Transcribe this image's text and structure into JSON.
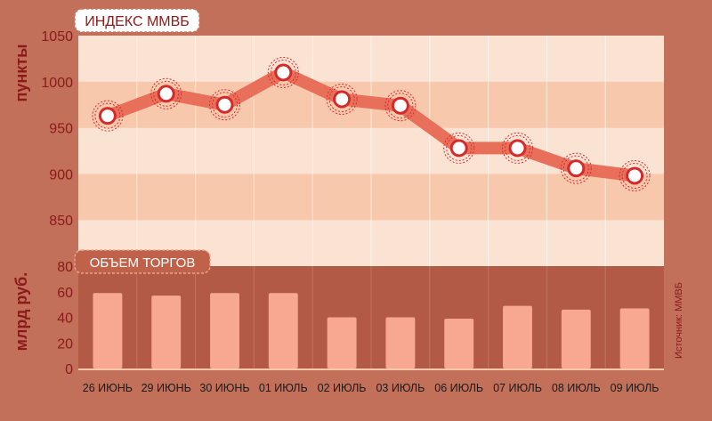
{
  "chart_data": [
    {
      "type": "line",
      "title": "ИНДЕКС ММВБ",
      "ylabel": "пункты",
      "categories": [
        "26 ИЮНЬ",
        "29 ИЮНЬ",
        "30 ИЮНЬ",
        "01 ИЮЛЬ",
        "02 ИЮЛЬ",
        "03 ИЮЛЬ",
        "06 ИЮЛЬ",
        "07 ИЮЛЬ",
        "08 ИЮЛЬ",
        "09 ИЮЛЬ"
      ],
      "values": [
        963,
        987,
        975,
        1010,
        981,
        974,
        928,
        928,
        906,
        898
      ],
      "ylim": [
        800,
        1050
      ],
      "yticks": [
        850,
        900,
        950,
        1000,
        1050
      ],
      "colors": {
        "line": "#e8705a",
        "marker_ring": "#d42a2a",
        "band_light": "#fbe3d3",
        "band_dark": "#f7c8ac"
      }
    },
    {
      "type": "bar",
      "title": "ОБЪЕМ ТОРГОВ",
      "ylabel": "млрд руб.",
      "categories": [
        "26 ИЮНЬ",
        "29 ИЮНЬ",
        "30 ИЮНЬ",
        "01 ИЮЛЬ",
        "02 ИЮЛЬ",
        "03 ИЮЛЬ",
        "06 ИЮЛЬ",
        "07 ИЮЛЬ",
        "08 ИЮЛЬ",
        "09 ИЮЛЬ"
      ],
      "values": [
        59,
        57,
        59,
        59,
        40,
        40,
        39,
        49,
        46,
        47
      ],
      "ylim": [
        0,
        80
      ],
      "yticks": [
        0,
        20,
        40,
        60,
        80
      ],
      "colors": {
        "bar": "#f8a891",
        "background": "#b25a45"
      }
    }
  ],
  "source_note": "Источник: ММВБ",
  "colors": {
    "page_background": "#c2705a",
    "axis_text": "#8b1a1a",
    "label_box_border": "#c87862"
  }
}
